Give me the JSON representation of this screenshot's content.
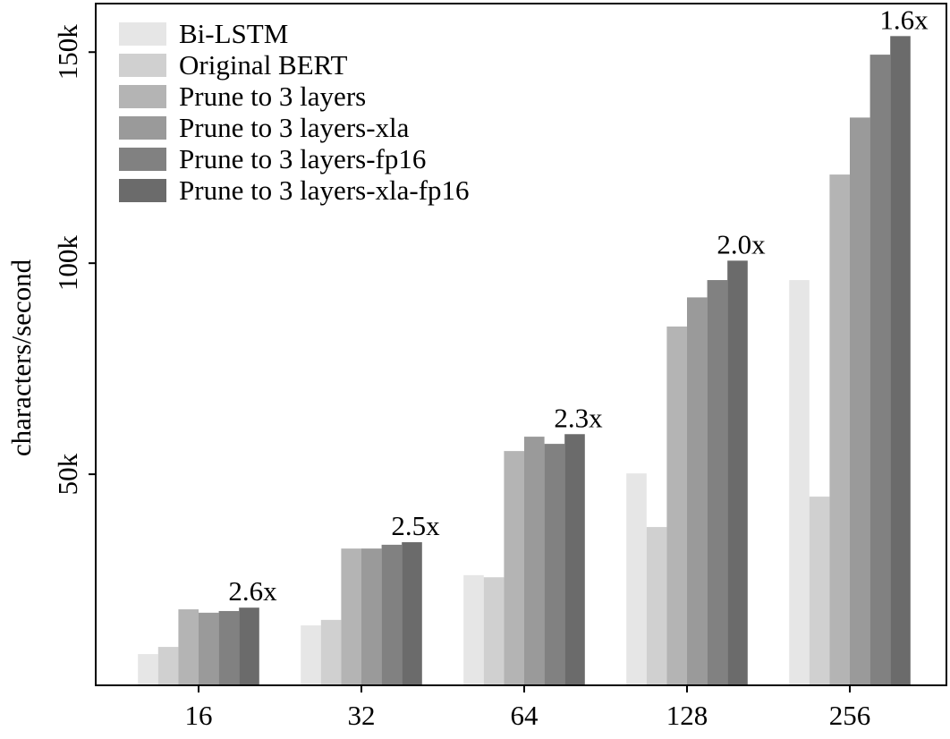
{
  "chart_data": {
    "type": "bar",
    "y_label": "characters/second",
    "categories": [
      "16",
      "32",
      "64",
      "128",
      "256"
    ],
    "series": [
      {
        "name": "Bi-LSTM",
        "color": "#e6e6e6",
        "values": [
          7400,
          14200,
          26100,
          50200,
          96000
        ]
      },
      {
        "name": "Original BERT",
        "color": "#d0d0d0",
        "values": [
          9100,
          15500,
          25600,
          37500,
          44700
        ]
      },
      {
        "name": "Prune to 3 layers",
        "color": "#b4b4b4",
        "values": [
          18000,
          32400,
          55500,
          85000,
          121000
        ]
      },
      {
        "name": "Prune to 3 layers-xla",
        "color": "#9a9a9a",
        "values": [
          17200,
          32400,
          58900,
          91900,
          134500
        ]
      },
      {
        "name": "Prune to 3 layers-fp16",
        "color": "#818181",
        "values": [
          17600,
          33300,
          57200,
          96000,
          149400
        ]
      },
      {
        "name": "Prune to 3 layers-xla-fp16",
        "color": "#6b6b6b",
        "values": [
          18400,
          33900,
          59500,
          100600,
          153800
        ]
      }
    ],
    "annotations": [
      "2.6x",
      "2.5x",
      "2.3x",
      "2.0x",
      "1.6x"
    ],
    "ylim": [
      0,
      161500
    ],
    "yticks": [
      {
        "value": 50000,
        "label": "50k"
      },
      {
        "value": 100000,
        "label": "100k"
      },
      {
        "value": 150000,
        "label": "150k"
      }
    ],
    "legend": "top-left"
  }
}
